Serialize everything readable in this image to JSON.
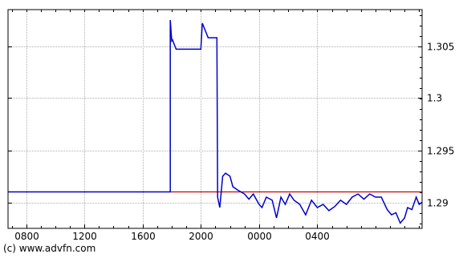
{
  "chart_data": {
    "type": "line",
    "x_ticks": [
      "0800",
      "1200",
      "1600",
      "2000",
      "0000",
      "0400"
    ],
    "y_ticks": [
      1.29,
      1.295,
      1.3,
      1.305
    ],
    "y_tick_labels": [
      "1.29",
      "1.295",
      "1.3",
      "1.305"
    ],
    "ylim": [
      1.2875,
      1.3085
    ],
    "xlim_hours": [
      6.75,
      35.2
    ],
    "y_axis_side": "right",
    "grid": true,
    "reference_line": {
      "value": 1.291
    },
    "series": [
      {
        "x_hours": [
          6.75,
          17.9,
          17.9,
          18.0,
          18.05,
          18.3,
          18.5,
          19.0,
          19.5,
          20.0,
          20.1,
          20.3,
          20.5,
          20.8,
          21.0,
          21.1,
          21.15,
          21.3,
          21.5,
          21.7,
          22.0,
          22.2,
          22.5,
          23.0,
          23.3,
          23.6,
          24.0,
          24.2,
          24.5,
          24.9,
          25.2,
          25.5,
          25.8,
          26.1,
          26.4,
          26.8,
          27.2,
          27.6,
          28.0,
          28.4,
          28.8,
          29.2,
          29.6,
          30.0,
          30.4,
          30.8,
          31.2,
          31.6,
          32.0,
          32.4,
          32.8,
          33.1,
          33.4,
          33.7,
          34.0,
          34.2,
          34.5,
          34.8,
          35.0,
          35.2
        ],
        "values": [
          1.291,
          1.291,
          1.3075,
          1.3055,
          1.3056,
          1.3047,
          1.3047,
          1.3047,
          1.3047,
          1.3047,
          1.3072,
          1.3065,
          1.3058,
          1.3058,
          1.3058,
          1.3058,
          1.2905,
          1.2895,
          1.2925,
          1.2928,
          1.2925,
          1.2915,
          1.2912,
          1.2908,
          1.2903,
          1.2908,
          1.2898,
          1.2895,
          1.2905,
          1.2902,
          1.2885,
          1.2905,
          1.2898,
          1.2908,
          1.2902,
          1.2898,
          1.2888,
          1.2902,
          1.2895,
          1.2898,
          1.2892,
          1.2896,
          1.2902,
          1.2898,
          1.2905,
          1.2908,
          1.2903,
          1.2908,
          1.2905,
          1.2905,
          1.2893,
          1.2888,
          1.289,
          1.288,
          1.2885,
          1.2895,
          1.2893,
          1.2905,
          1.2898,
          1.29
        ],
        "color": "#0000cc"
      }
    ],
    "reference_color": "#cc0000"
  },
  "credit": "(c) www.advfn.com"
}
